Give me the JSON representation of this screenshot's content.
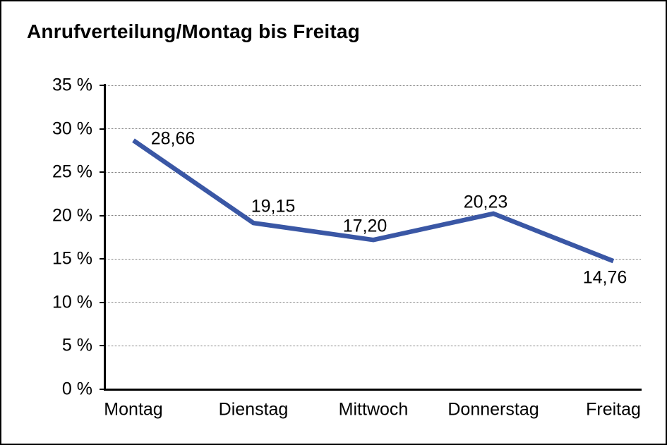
{
  "window": {
    "background_color": "#ffffff",
    "frame_color": "#000000"
  },
  "chart_data": {
    "type": "line",
    "title": "Anrufverteilung/Montag bis Freitag",
    "categories": [
      "Montag",
      "Dienstag",
      "Mittwoch",
      "Donnerstag",
      "Freitag"
    ],
    "series": [
      {
        "name": "Anrufverteilung",
        "values": [
          28.66,
          19.15,
          17.2,
          20.23,
          14.76
        ]
      }
    ],
    "value_labels": [
      "28,66",
      "19,15",
      "17,20",
      "20,23",
      "14,76"
    ],
    "xlabel": "",
    "ylabel": "",
    "ylim": [
      0,
      35
    ],
    "y_tick_values": [
      35,
      30,
      25,
      20,
      15,
      10,
      5,
      0
    ],
    "y_tick_labels": [
      "35 %",
      "30 %",
      "25 %",
      "20 %",
      "15 %",
      "10 %",
      "5 %",
      "0 %"
    ],
    "grid": "horizontal dotted",
    "legend_position": "none",
    "line_color": "#3A57A5",
    "axis_color": "#000000",
    "grid_color": "#7b7b7b",
    "text_color": "#000000"
  }
}
